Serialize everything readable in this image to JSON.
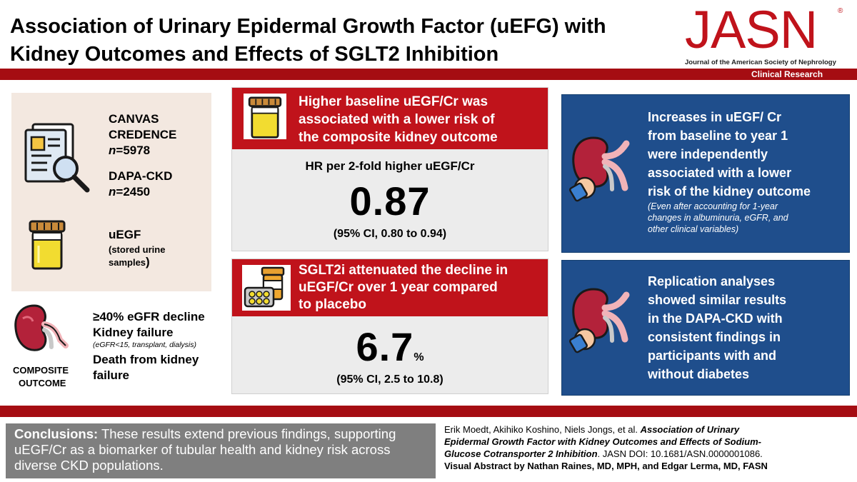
{
  "header": {
    "title_line1": "Association of Urinary Epidermal Growth Factor (uEFG) with",
    "title_line2": "Kidney Outcomes and Effects of SGLT2 Inhibition",
    "journal_logo": "JASN",
    "journal_name": "Journal of the American Society of Nephrology",
    "section_label": "Clinical Research",
    "accent_color": "#a50d12"
  },
  "left_panel": {
    "trial1_line1": "CANVAS",
    "trial1_line2": "CREDENCE",
    "trial1_n_label": "n",
    "trial1_n_value": "=5978",
    "trial2_name": "DAPA-CKD",
    "trial2_n_label": "n",
    "trial2_n_value": "=2450",
    "sample_title": "uEGF",
    "sample_line1": "(stored urine",
    "sample_line2": "samples",
    "sample_close": ")",
    "outcome_item1": "≥40% eGFR decline",
    "outcome_item2": "Kidney failure",
    "outcome_item2_note": "(eGFR<15, transplant, dialysis)",
    "outcome_item3_line1": "Death from kidney",
    "outcome_item3_line2": "failure",
    "outcome_label_line1": "COMPOSITE",
    "outcome_label_line2": "OUTCOME"
  },
  "middle_top": {
    "headline_line1": "Higher baseline uEGF/Cr was",
    "headline_line2": "associated with a lower risk of",
    "headline_line3": "the composite kidney outcome",
    "metric_label": "HR per 2-fold higher uEGF/Cr",
    "value": "0.87",
    "ci": "(95% CI, 0.80 to 0.94)"
  },
  "middle_bottom": {
    "headline_line1": "SGLT2i attenuated the decline in",
    "headline_line2": "uEGF/Cr over 1 year compared",
    "headline_line3": "to placebo",
    "value": "6.7",
    "unit": "%",
    "ci": "(95% CI, 2.5 to 10.8)"
  },
  "right_top": {
    "line1": "Increases in uEGF/ Cr",
    "line2": "from baseline to year 1",
    "line3": "were independently",
    "line4": "associated with a lower",
    "line5": "risk of the kidney outcome",
    "note_line1": "(Even after accounting for 1-year",
    "note_line2": "changes in albuminuria, eGFR, and",
    "note_line3": "other clinical variables)"
  },
  "right_bottom": {
    "line1": "Replication analyses",
    "line2": "showed similar results",
    "line3": "in the DAPA-CKD with",
    "line4": "consistent findings in",
    "line5": "participants with and",
    "line6": "without diabetes"
  },
  "footer": {
    "conclusions_label": "Conclusions:",
    "conclusions_line1": " These results extend previous findings, supporting",
    "conclusions_line2": "uEGF/Cr as a biomarker of tubular health and kidney risk across",
    "conclusions_line3": "diverse CKD populations.",
    "citation_authors": "Erik Moedt, Akihiko Koshino, Niels Jongs, et al. ",
    "citation_title_line1": "Association of Urinary",
    "citation_title_line2": "Epidermal Growth Factor with Kidney Outcomes and Effects of Sodium-",
    "citation_title_line3": "Glucose Cotransporter 2 Inhibition",
    "citation_doi": ". JASN DOI: 10.1681/ASN.0000001086.",
    "citation_credit": "Visual Abstract by Nathan Raines, MD, MPH, and Edgar Lerma, MD, FASN"
  }
}
